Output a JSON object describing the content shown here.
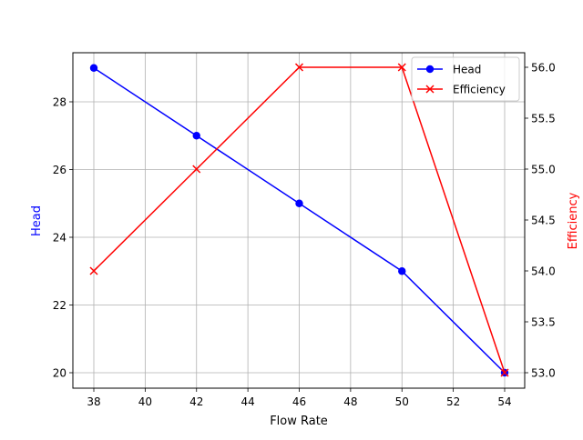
{
  "chart_data": {
    "type": "line",
    "title": "",
    "xlabel": "Flow Rate",
    "ylabel": "Head",
    "ylabel_right": "Efficiency",
    "x": [
      38,
      42,
      46,
      50,
      54
    ],
    "xticks": [
      "38",
      "40",
      "42",
      "44",
      "46",
      "48",
      "50",
      "52",
      "54"
    ],
    "yticks_left": [
      "20",
      "22",
      "24",
      "26",
      "28"
    ],
    "yticks_right": [
      "53.0",
      "53.5",
      "54.0",
      "54.5",
      "55.0",
      "55.5",
      "56.0"
    ],
    "xlim": [
      37.2,
      54.8
    ],
    "ylim": [
      19.55,
      29.45
    ],
    "ylim_right": [
      52.85,
      56.15
    ],
    "grid": true,
    "legend_position": "upper right",
    "series": [
      {
        "name": "Head",
        "axis": "left",
        "color": "#0000ff",
        "marker": "o",
        "values": [
          29,
          27,
          25,
          23,
          20
        ]
      },
      {
        "name": "Efficiency",
        "axis": "right",
        "color": "#ff0000",
        "marker": "x",
        "values": [
          54,
          55,
          56,
          56,
          53
        ]
      }
    ]
  }
}
